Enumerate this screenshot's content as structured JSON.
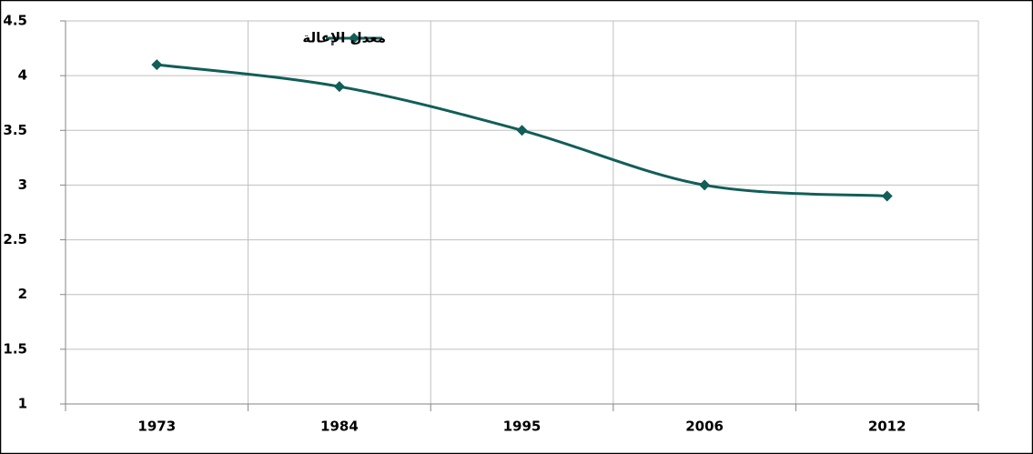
{
  "chart_data": {
    "type": "line",
    "categories": [
      "1973",
      "1984",
      "1995",
      "2006",
      "2012"
    ],
    "series": [
      {
        "name": "معدل الإعالة",
        "color": "#125e58",
        "values": [
          4.1,
          3.9,
          3.5,
          3.0,
          2.9
        ]
      }
    ],
    "ylim": [
      1,
      4.5
    ],
    "yticks": [
      1,
      1.5,
      2,
      2.5,
      3,
      3.5,
      4,
      4.5
    ],
    "grid": true,
    "smooth": true,
    "legend": "top"
  }
}
